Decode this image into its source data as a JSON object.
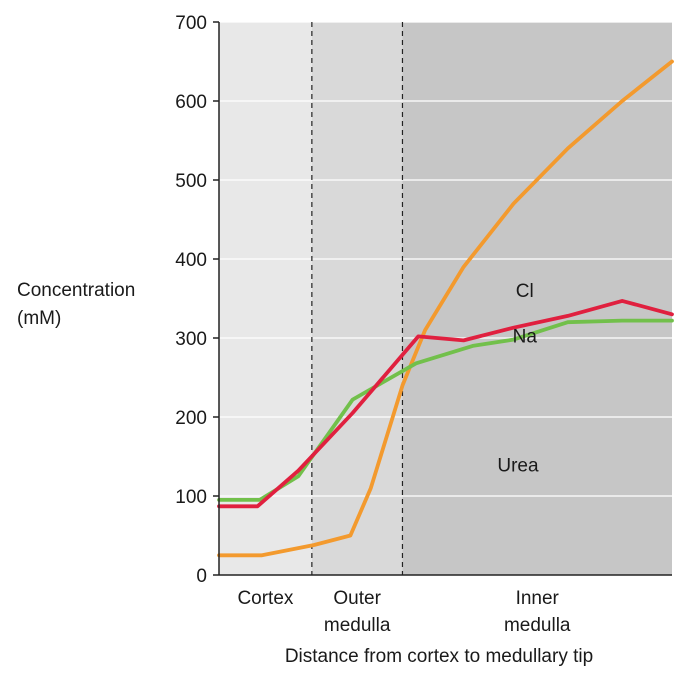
{
  "chart_data": {
    "type": "line",
    "xlabel": "Distance from cortex to medullary tip",
    "ylabel": [
      "Concentration",
      "(mM)"
    ],
    "ylim": [
      0,
      700
    ],
    "yticks": [
      0,
      100,
      200,
      300,
      400,
      500,
      600,
      700
    ],
    "xlim": [
      0,
      10
    ],
    "grid": true,
    "regions": [
      {
        "lines": [
          "Cortex"
        ],
        "start": 0,
        "end": 2.05,
        "fill": "#e8e8e8"
      },
      {
        "lines": [
          "Outer",
          "medulla"
        ],
        "start": 2.05,
        "end": 4.05,
        "fill": "#d9d9d9"
      },
      {
        "lines": [
          "Inner",
          "medulla"
        ],
        "start": 4.05,
        "end": 10,
        "fill": "#c6c6c6"
      }
    ],
    "series": [
      {
        "name": "Urea",
        "color": "#f39a2e",
        "label_at": [
          6.6,
          140
        ],
        "x": [
          0,
          0.95,
          2.1,
          2.9,
          3.35,
          4.05,
          4.55,
          5.4,
          6.5,
          7.7,
          8.9,
          10
        ],
        "y": [
          25,
          25,
          38,
          50,
          110,
          240,
          310,
          390,
          470,
          540,
          600,
          650
        ]
      },
      {
        "name": "Na",
        "color": "#e0203f",
        "label_at": [
          6.75,
          303
        ],
        "x": [
          0,
          0.85,
          1.75,
          2.95,
          4.4,
          5.4,
          6.5,
          7.7,
          8.9,
          10
        ],
        "y": [
          87,
          87,
          132,
          205,
          302,
          297,
          313,
          328,
          347,
          330
        ]
      },
      {
        "name": "Cl",
        "color": "#72c04b",
        "label_at": [
          6.75,
          361
        ],
        "x": [
          0,
          0.9,
          1.75,
          2.95,
          4.35,
          5.6,
          6.5,
          7.7,
          8.9,
          10
        ],
        "y": [
          95,
          95,
          125,
          222,
          268,
          290,
          298,
          320,
          322,
          322
        ]
      }
    ]
  }
}
